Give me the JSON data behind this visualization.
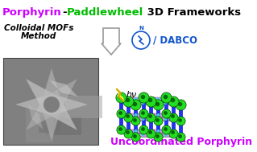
{
  "title_parts": [
    {
      "text": "Porphyrin",
      "color": "#CC00FF"
    },
    {
      "text": "-",
      "color": "#000000"
    },
    {
      "text": "Paddlewheel",
      "color": "#00BB00"
    },
    {
      "text": " 3D Frameworks",
      "color": "#000000"
    }
  ],
  "subtitle_line1": "Colloidal MOFs",
  "subtitle_line2": "Method",
  "dabco_text": "/ DABCO",
  "dabco_color": "#1155CC",
  "bottom_label": "Uncoordinated Porphyrin",
  "bottom_label_color": "#CC00FF",
  "background_color": "#FFFFFF",
  "green_color": "#22DD22",
  "pink_color": "#DD88EE",
  "blue_color": "#2233EE",
  "cyan_color": "#44CCCC",
  "gray_color": "#999999",
  "fig_width": 3.19,
  "fig_height": 1.89,
  "dpi": 100
}
